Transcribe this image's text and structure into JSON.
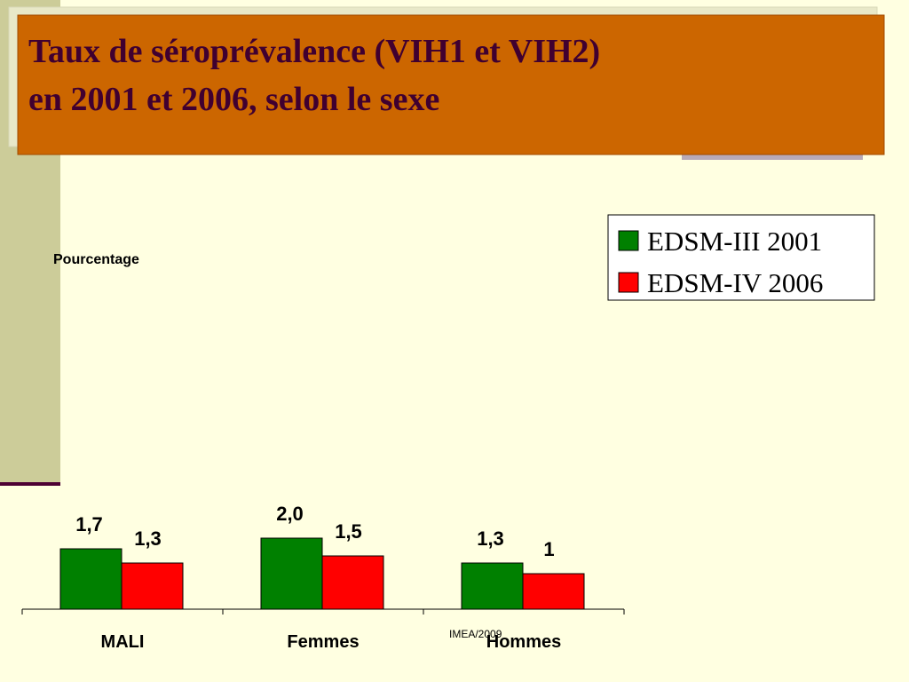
{
  "chart_data": {
    "type": "bar",
    "title_lines": [
      "Taux de séroprévalence (VIH1 et VIH2)",
      "en 2001 et 2006, selon le sexe"
    ],
    "y_label": "Pourcentage",
    "categories": [
      "MALI",
      "Femmes",
      "Hommes"
    ],
    "series": [
      {
        "name": "EDSM-III 2001",
        "color": "#008000",
        "values": [
          1.7,
          2.0,
          1.3
        ],
        "value_labels": [
          "1,7",
          "2,0",
          "1,3"
        ]
      },
      {
        "name": "EDSM-IV 2006",
        "color": "#ff0000",
        "values": [
          1.3,
          1.5,
          1
        ],
        "value_labels": [
          "1,3",
          "1,5",
          "1"
        ]
      }
    ],
    "ylim": [
      0,
      2.5
    ],
    "footer": "IMEA/2009"
  }
}
